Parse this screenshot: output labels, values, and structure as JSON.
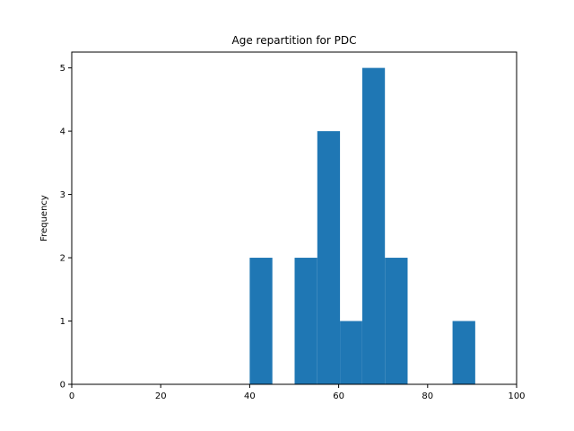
{
  "chart_data": {
    "type": "bar",
    "title": "Age repartition for PDC",
    "xlabel": "",
    "ylabel": "Frequency",
    "xlim": [
      0,
      100
    ],
    "ylim": [
      0,
      5.25
    ],
    "xticks": [
      0,
      20,
      40,
      60,
      80,
      100
    ],
    "yticks": [
      0,
      1,
      2,
      3,
      4,
      5
    ],
    "bin_width": 5.1,
    "bins": [
      {
        "start": 40.0,
        "end": 45.1,
        "count": 2
      },
      {
        "start": 45.1,
        "end": 50.1,
        "count": 0
      },
      {
        "start": 50.1,
        "end": 55.2,
        "count": 2
      },
      {
        "start": 55.2,
        "end": 60.3,
        "count": 4
      },
      {
        "start": 60.3,
        "end": 65.3,
        "count": 1
      },
      {
        "start": 65.3,
        "end": 70.4,
        "count": 5
      },
      {
        "start": 70.4,
        "end": 75.5,
        "count": 2
      },
      {
        "start": 75.5,
        "end": 80.5,
        "count": 0
      },
      {
        "start": 80.5,
        "end": 85.6,
        "count": 0
      },
      {
        "start": 85.6,
        "end": 90.7,
        "count": 1
      }
    ],
    "grid": false,
    "bar_color": "#1f77b4"
  }
}
